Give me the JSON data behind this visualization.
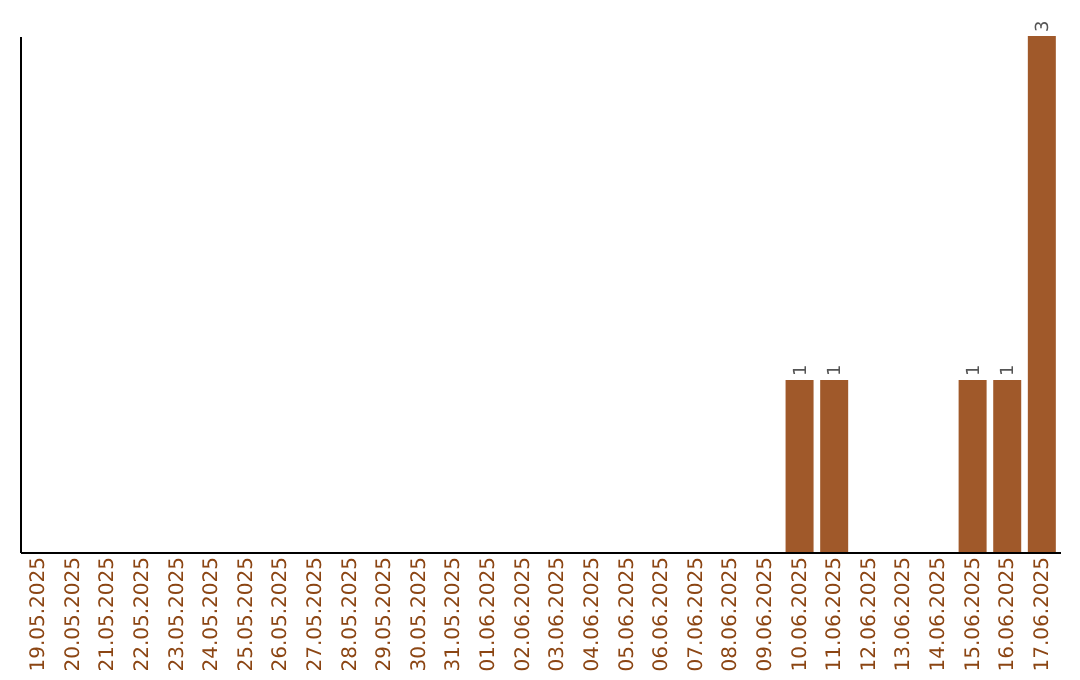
{
  "chart_data": {
    "type": "bar",
    "categories": [
      "19.05.2025",
      "20.05.2025",
      "21.05.2025",
      "22.05.2025",
      "23.05.2025",
      "24.05.2025",
      "25.05.2025",
      "26.05.2025",
      "27.05.2025",
      "28.05.2025",
      "29.05.2025",
      "30.05.2025",
      "31.05.2025",
      "01.06.2025",
      "02.06.2025",
      "03.06.2025",
      "04.06.2025",
      "05.06.2025",
      "06.06.2025",
      "07.06.2025",
      "08.06.2025",
      "09.06.2025",
      "10.06.2025",
      "11.06.2025",
      "12.06.2025",
      "13.06.2025",
      "14.06.2025",
      "15.06.2025",
      "16.06.2025",
      "17.06.2025"
    ],
    "values": [
      null,
      null,
      null,
      null,
      null,
      null,
      null,
      null,
      null,
      null,
      null,
      null,
      null,
      null,
      null,
      null,
      null,
      null,
      null,
      null,
      null,
      null,
      1,
      1,
      null,
      null,
      null,
      1,
      1,
      3
    ],
    "value_labels": [
      null,
      null,
      null,
      null,
      null,
      null,
      null,
      null,
      null,
      null,
      null,
      null,
      null,
      null,
      null,
      null,
      null,
      null,
      null,
      null,
      null,
      null,
      "1",
      "1",
      null,
      null,
      null,
      "1",
      "1",
      "3"
    ],
    "color": "#a0592a",
    "grid": false,
    "tick_labels": "x"
  }
}
